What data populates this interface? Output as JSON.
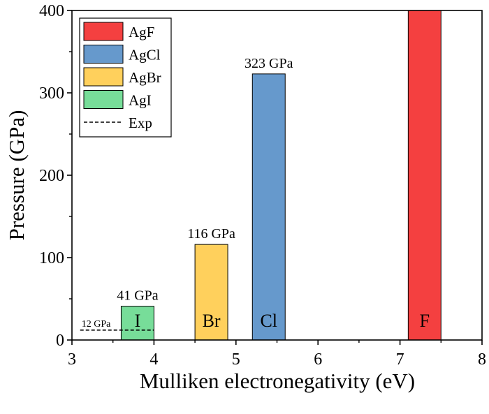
{
  "chart_data": {
    "type": "bar",
    "xlabel": "Mulliken electronegativity (eV)",
    "ylabel": "Pressure (GPa)",
    "xlim": [
      3,
      8
    ],
    "ylim": [
      0,
      400
    ],
    "xticks": [
      "3",
      "4",
      "5",
      "6",
      "7",
      "8"
    ],
    "yticks": [
      "0",
      "100",
      "200",
      "300",
      "400"
    ],
    "grid": false,
    "legend_position": "top-left",
    "series": [
      {
        "name": "AgF",
        "x_start": 7.1,
        "x_end": 7.5,
        "value": 400,
        "color": "#f44040",
        "inner_label": "F",
        "value_label": ""
      },
      {
        "name": "AgCl",
        "x_start": 5.2,
        "x_end": 5.6,
        "value": 323,
        "color": "#6699cc",
        "inner_label": "Cl",
        "value_label": "323 GPa"
      },
      {
        "name": "AgBr",
        "x_start": 4.5,
        "x_end": 4.9,
        "value": 116,
        "color": "#ffd05c",
        "inner_label": "Br",
        "value_label": "116 GPa"
      },
      {
        "name": "AgI",
        "x_start": 3.6,
        "x_end": 4.0,
        "value": 41,
        "color": "#77dd99",
        "inner_label": "I",
        "value_label": "41 GPa"
      }
    ],
    "reference_line": {
      "name": "Exp",
      "value": 12,
      "x_start": 3.1,
      "x_end": 4.0,
      "label": "12 GPa",
      "style": "dashed"
    }
  }
}
